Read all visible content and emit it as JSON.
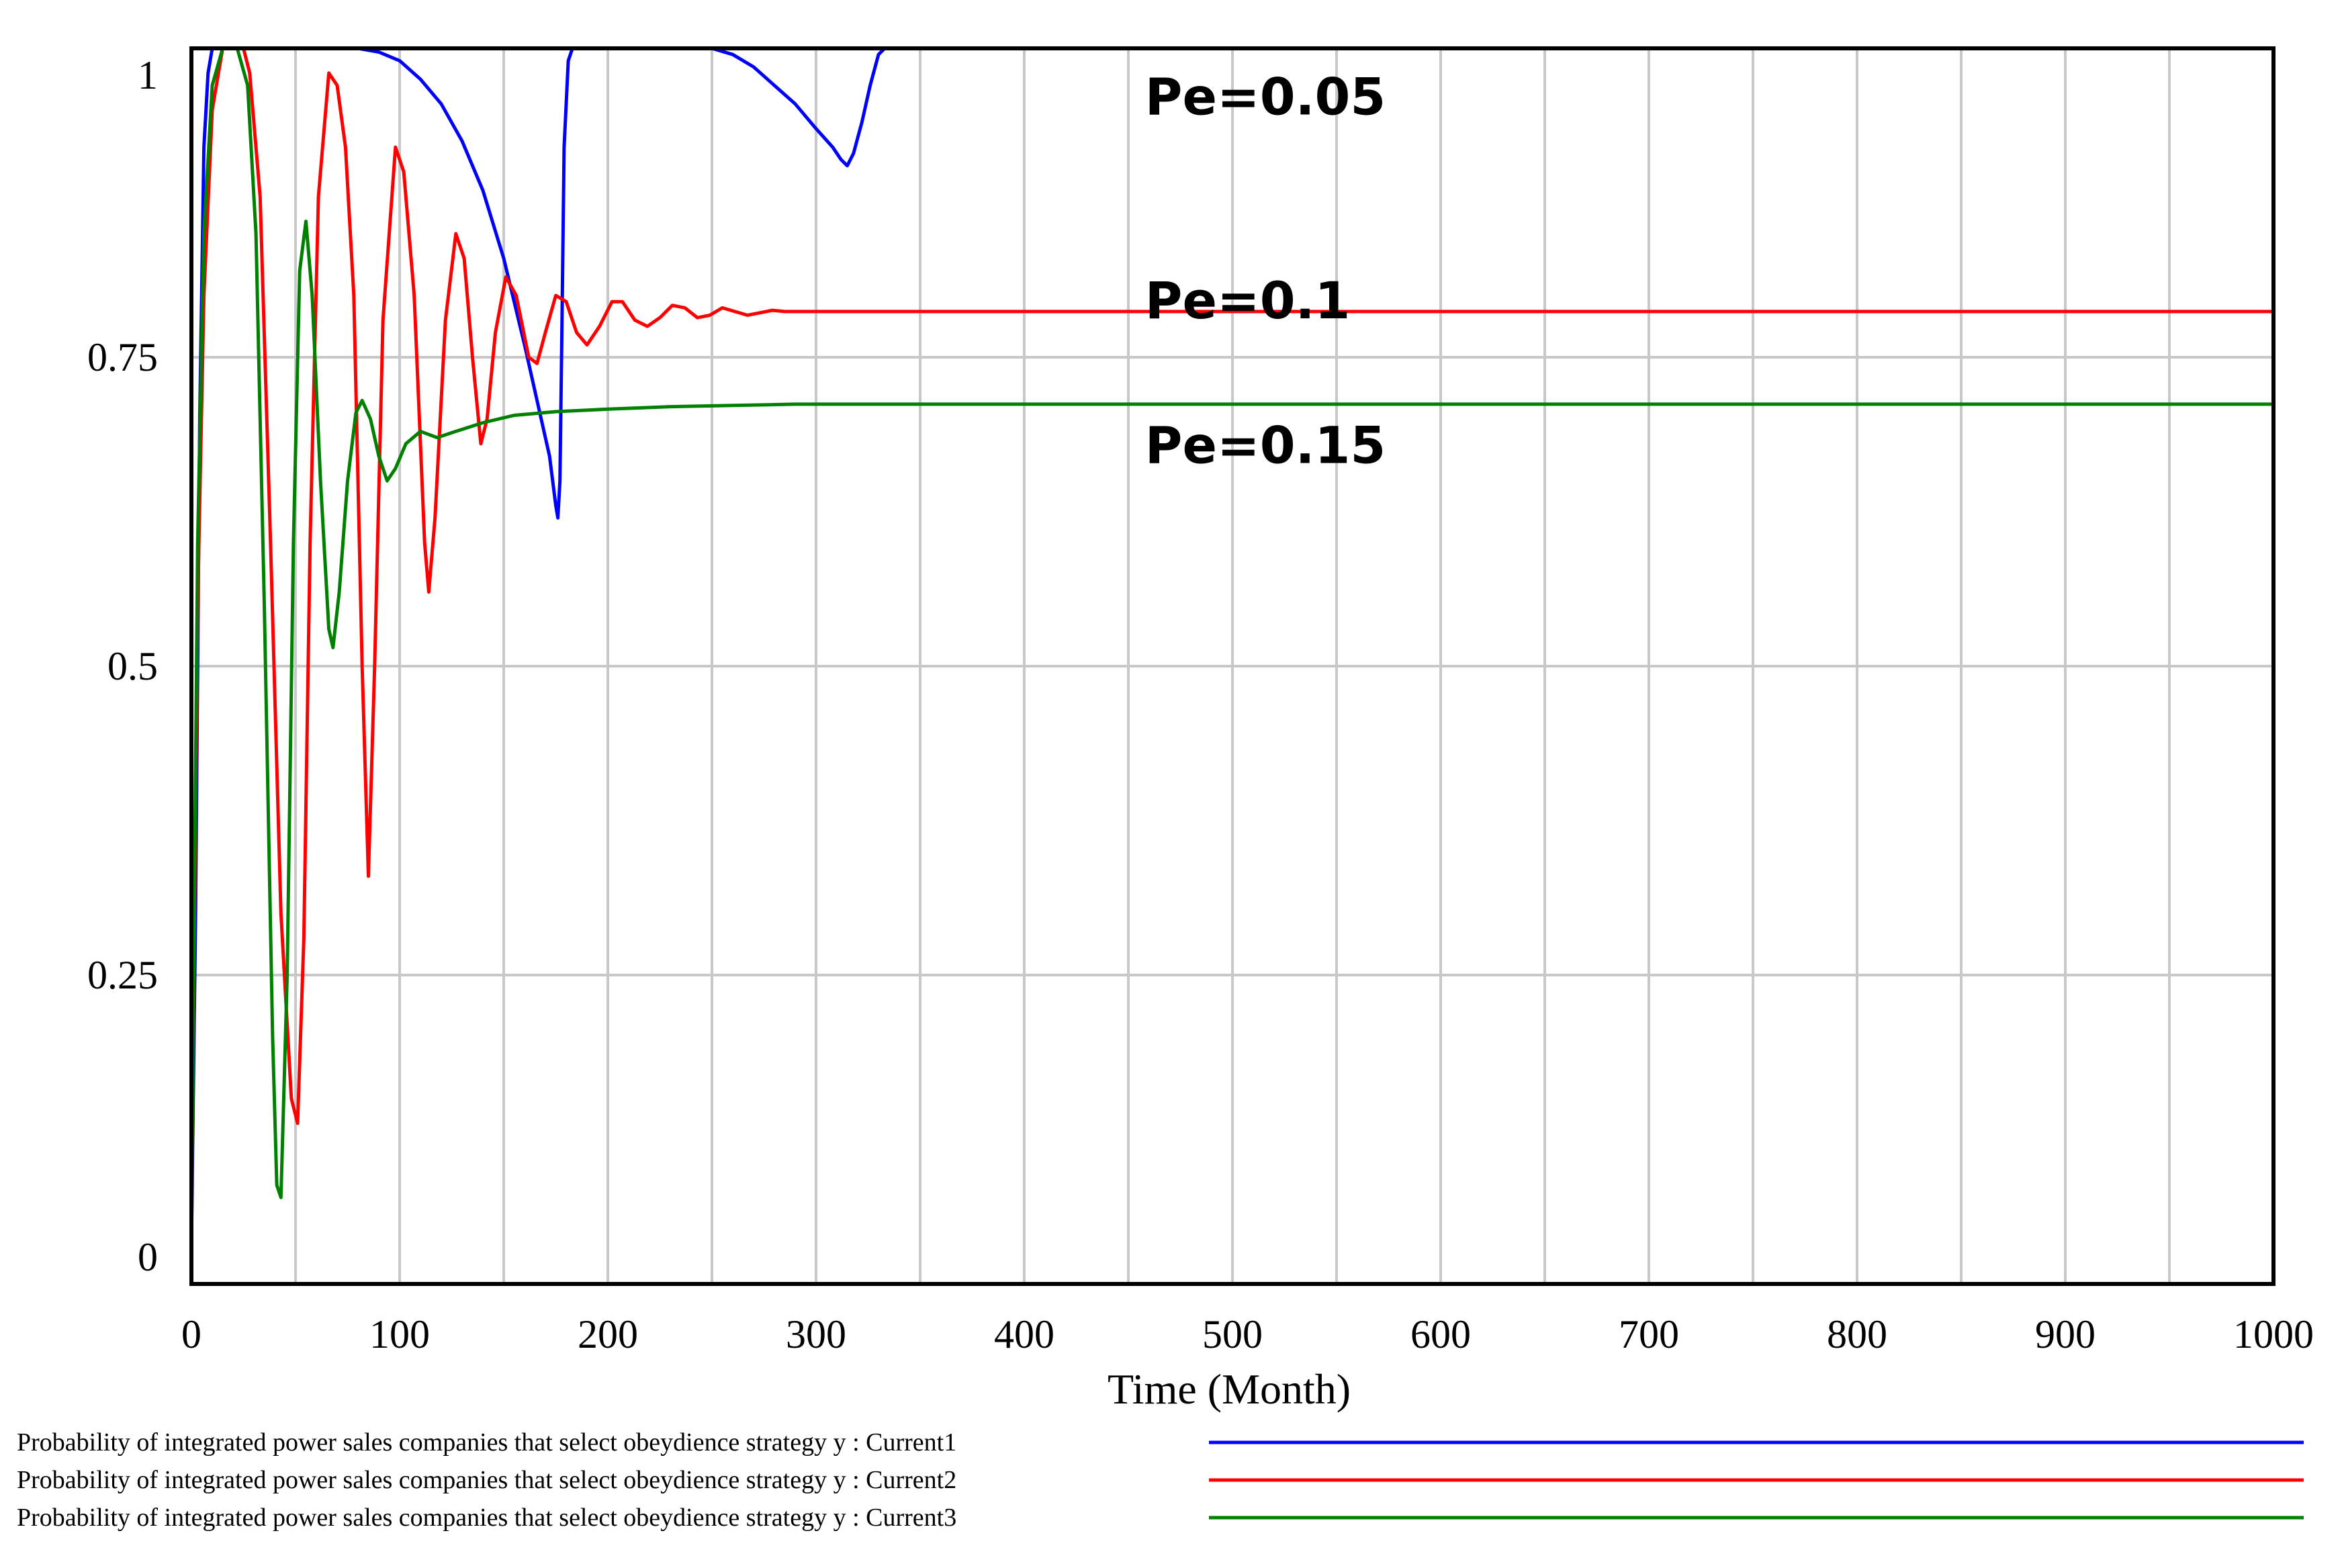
{
  "chart_data": {
    "type": "line",
    "title": "",
    "xlabel": "Time (Month)",
    "ylabel": "",
    "xlim": [
      0,
      1000
    ],
    "ylim": [
      0,
      1
    ],
    "grid": true,
    "x_ticks": [
      0,
      100,
      200,
      300,
      400,
      500,
      600,
      700,
      800,
      900,
      1000
    ],
    "x_tick_labels": [
      "0",
      "100",
      "200",
      "300",
      "400",
      "500",
      "600",
      "700",
      "800",
      "900",
      "1000"
    ],
    "x_minor_gridlines": [
      50,
      150,
      250,
      350,
      450,
      550,
      650,
      750,
      850,
      950
    ],
    "y_ticks": [
      0,
      0.25,
      0.5,
      0.75,
      1
    ],
    "y_tick_labels": [
      "0",
      "0.25",
      "0.5",
      "0.75",
      "1"
    ],
    "series": [
      {
        "name": "Probability of integrated power sales companies that select obeydience strategy y : Current1",
        "color": "#0000ff",
        "annotation": "Pe=0.05",
        "points": [
          [
            0,
            0.03
          ],
          [
            2,
            0.3
          ],
          [
            4,
            0.7
          ],
          [
            6,
            0.92
          ],
          [
            8,
            0.98
          ],
          [
            10,
            1.0
          ],
          [
            80,
            1.0
          ],
          [
            90,
            0.997
          ],
          [
            100,
            0.99
          ],
          [
            110,
            0.975
          ],
          [
            120,
            0.955
          ],
          [
            130,
            0.925
          ],
          [
            140,
            0.885
          ],
          [
            150,
            0.83
          ],
          [
            160,
            0.76
          ],
          [
            168,
            0.7
          ],
          [
            172,
            0.67
          ],
          [
            175,
            0.63
          ],
          [
            176,
            0.62
          ],
          [
            177,
            0.65
          ],
          [
            178,
            0.78
          ],
          [
            179,
            0.92
          ],
          [
            181,
            0.99
          ],
          [
            183,
            1.0
          ],
          [
            250,
            1.0
          ],
          [
            260,
            0.995
          ],
          [
            270,
            0.985
          ],
          [
            280,
            0.97
          ],
          [
            290,
            0.955
          ],
          [
            300,
            0.935
          ],
          [
            308,
            0.92
          ],
          [
            312,
            0.91
          ],
          [
            315,
            0.905
          ],
          [
            318,
            0.915
          ],
          [
            322,
            0.94
          ],
          [
            326,
            0.97
          ],
          [
            330,
            0.995
          ],
          [
            333,
            1.0
          ],
          [
            1000,
            1.0
          ]
        ]
      },
      {
        "name": "Probability of integrated power sales companies that select obeydience strategy y : Current2",
        "color": "#ff0000",
        "annotation": "Pe=0.1",
        "points": [
          [
            0,
            0.05
          ],
          [
            3,
            0.55
          ],
          [
            6,
            0.8
          ],
          [
            10,
            0.95
          ],
          [
            15,
            1.0
          ],
          [
            25,
            1.0
          ],
          [
            28,
            0.98
          ],
          [
            33,
            0.88
          ],
          [
            38,
            0.6
          ],
          [
            43,
            0.3
          ],
          [
            48,
            0.15
          ],
          [
            51,
            0.13
          ],
          [
            54,
            0.28
          ],
          [
            57,
            0.6
          ],
          [
            61,
            0.88
          ],
          [
            66,
            0.98
          ],
          [
            70,
            0.97
          ],
          [
            74,
            0.92
          ],
          [
            78,
            0.8
          ],
          [
            82,
            0.5
          ],
          [
            85,
            0.33
          ],
          [
            88,
            0.5
          ],
          [
            92,
            0.78
          ],
          [
            98,
            0.92
          ],
          [
            102,
            0.9
          ],
          [
            107,
            0.8
          ],
          [
            112,
            0.6
          ],
          [
            114,
            0.56
          ],
          [
            117,
            0.62
          ],
          [
            122,
            0.78
          ],
          [
            127,
            0.85
          ],
          [
            131,
            0.83
          ],
          [
            135,
            0.75
          ],
          [
            139,
            0.68
          ],
          [
            142,
            0.7
          ],
          [
            146,
            0.77
          ],
          [
            151,
            0.815
          ],
          [
            156,
            0.8
          ],
          [
            162,
            0.75
          ],
          [
            166,
            0.745
          ],
          [
            170,
            0.77
          ],
          [
            175,
            0.8
          ],
          [
            180,
            0.795
          ],
          [
            185,
            0.77
          ],
          [
            190,
            0.76
          ],
          [
            196,
            0.775
          ],
          [
            202,
            0.795
          ],
          [
            207,
            0.795
          ],
          [
            213,
            0.78
          ],
          [
            219,
            0.775
          ],
          [
            225,
            0.782
          ],
          [
            231,
            0.792
          ],
          [
            237,
            0.79
          ],
          [
            243,
            0.782
          ],
          [
            249,
            0.784
          ],
          [
            255,
            0.79
          ],
          [
            261,
            0.787
          ],
          [
            267,
            0.784
          ],
          [
            273,
            0.786
          ],
          [
            279,
            0.788
          ],
          [
            285,
            0.787
          ],
          [
            300,
            0.787
          ],
          [
            1000,
            0.787
          ]
        ]
      },
      {
        "name": "Probability of integrated power sales companies that select obeydience strategy y : Current3",
        "color": "#008000",
        "annotation": "Pe=0.15",
        "points": [
          [
            0,
            0.05
          ],
          [
            3,
            0.6
          ],
          [
            6,
            0.85
          ],
          [
            10,
            0.97
          ],
          [
            15,
            1.0
          ],
          [
            22,
            1.0
          ],
          [
            27,
            0.97
          ],
          [
            31,
            0.85
          ],
          [
            35,
            0.55
          ],
          [
            39,
            0.2
          ],
          [
            41,
            0.08
          ],
          [
            43,
            0.07
          ],
          [
            46,
            0.25
          ],
          [
            49,
            0.6
          ],
          [
            52,
            0.82
          ],
          [
            55,
            0.86
          ],
          [
            58,
            0.8
          ],
          [
            62,
            0.65
          ],
          [
            66,
            0.53
          ],
          [
            68,
            0.515
          ],
          [
            71,
            0.56
          ],
          [
            75,
            0.65
          ],
          [
            79,
            0.705
          ],
          [
            82,
            0.715
          ],
          [
            86,
            0.7
          ],
          [
            90,
            0.67
          ],
          [
            94,
            0.65
          ],
          [
            98,
            0.66
          ],
          [
            103,
            0.68
          ],
          [
            110,
            0.69
          ],
          [
            118,
            0.685
          ],
          [
            127,
            0.69
          ],
          [
            140,
            0.697
          ],
          [
            155,
            0.703
          ],
          [
            175,
            0.706
          ],
          [
            200,
            0.708
          ],
          [
            230,
            0.71
          ],
          [
            260,
            0.711
          ],
          [
            290,
            0.712
          ],
          [
            320,
            0.712
          ],
          [
            1000,
            0.712
          ]
        ]
      }
    ],
    "annotations": [
      {
        "text": "Pe=0.05",
        "x": 458,
        "y": 0.96
      },
      {
        "text": "Pe=0.1",
        "x": 458,
        "y": 0.795
      },
      {
        "text": "Pe=0.15",
        "x": 458,
        "y": 0.678
      }
    ],
    "legend": {
      "placement": "bottom",
      "entries": [
        "Probability of integrated power sales companies that select obeydience strategy y : Current1",
        "Probability of integrated power sales companies that select obeydience strategy y : Current2",
        "Probability of integrated power sales companies that select obeydience strategy y : Current3"
      ]
    }
  }
}
